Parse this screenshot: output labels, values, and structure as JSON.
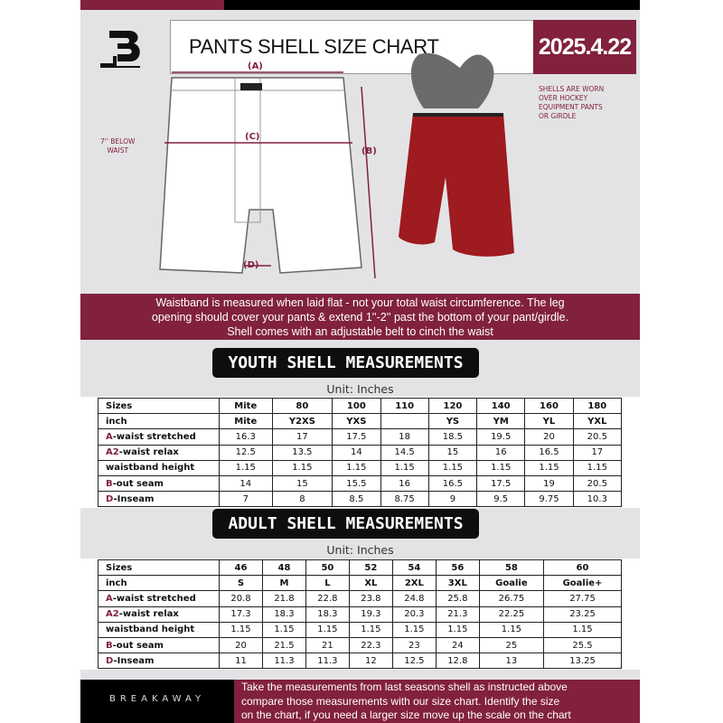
{
  "header": {
    "title": "PANTS SHELL SIZE CHART",
    "date": "2025.4.22",
    "logo": "B"
  },
  "diagram": {
    "label_a": "(A)",
    "label_b": "(B)",
    "label_c": "(C)",
    "label_d": "(D)",
    "note_left": [
      "7'' BELOW",
      "WAIST"
    ],
    "note_right": [
      "SHELLS ARE WORN",
      "OVER HOCKEY",
      "EQUIPMENT PANTS",
      "OR GIRDLE"
    ]
  },
  "banner": [
    "Waistband is measured when laid flat - not your total waist circumference. The leg",
    "opening should cover your pants & extend 1''-2'' past the bottom of your pant/girdle.",
    "Shell comes with an adjustable belt to cinch the waist"
  ],
  "youth": {
    "title": "YOUTH SHELL MEASUREMENTS",
    "unit": "Unit: Inches",
    "rows": [
      {
        "p": "",
        "l": "Sizes",
        "v": [
          "Mite",
          "80",
          "100",
          "110",
          "120",
          "140",
          "160",
          "180"
        ]
      },
      {
        "p": "",
        "l": "inch",
        "v": [
          "Mite",
          "Y2XS",
          "YXS",
          "",
          "YS",
          "YM",
          "YL",
          "YXL"
        ]
      },
      {
        "p": "A",
        "l": "-waist stretched",
        "v": [
          "16.3",
          "17",
          "17.5",
          "18",
          "18.5",
          "19.5",
          "20",
          "20.5"
        ]
      },
      {
        "p": "A2",
        "l": "-waist relax",
        "v": [
          "12.5",
          "13.5",
          "14",
          "14.5",
          "15",
          "16",
          "16.5",
          "17"
        ]
      },
      {
        "p": "",
        "l": "waistband height",
        "v": [
          "1.15",
          "1.15",
          "1.15",
          "1.15",
          "1.15",
          "1.15",
          "1.15",
          "1.15"
        ]
      },
      {
        "p": "B",
        "l": "-out seam",
        "v": [
          "14",
          "15",
          "15.5",
          "16",
          "16.5",
          "17.5",
          "19",
          "20.5"
        ]
      },
      {
        "p": "D",
        "l": "-Inseam",
        "v": [
          "7",
          "8",
          "8.5",
          "8.75",
          "9",
          "9.5",
          "9.75",
          "10.3"
        ]
      }
    ]
  },
  "adult": {
    "title": "ADULT SHELL MEASUREMENTS",
    "unit": "Unit: Inches",
    "rows": [
      {
        "p": "",
        "l": "Sizes",
        "v": [
          "46",
          "48",
          "50",
          "52",
          "54",
          "56",
          "58",
          "60"
        ]
      },
      {
        "p": "",
        "l": "inch",
        "v": [
          "S",
          "M",
          "L",
          "XL",
          "2XL",
          "3XL",
          "Goalie",
          "Goalie+"
        ]
      },
      {
        "p": "A",
        "l": "-waist stretched",
        "v": [
          "20.8",
          "21.8",
          "22.8",
          "23.8",
          "24.8",
          "25.8",
          "26.75",
          "27.75"
        ]
      },
      {
        "p": "A2",
        "l": "-waist relax",
        "v": [
          "17.3",
          "18.3",
          "18.3",
          "19.3",
          "20.3",
          "21.3",
          "22.25",
          "23.25"
        ]
      },
      {
        "p": "",
        "l": "waistband height",
        "v": [
          "1.15",
          "1.15",
          "1.15",
          "1.15",
          "1.15",
          "1.15",
          "1.15",
          "1.15"
        ]
      },
      {
        "p": "B",
        "l": "-out seam",
        "v": [
          "20",
          "21.5",
          "21",
          "22.3",
          "23",
          "24",
          "25",
          "25.5"
        ]
      },
      {
        "p": "D",
        "l": "-Inseam",
        "v": [
          "11",
          "11.3",
          "11.3",
          "12",
          "12.5",
          "12.8",
          "13",
          "13.25"
        ]
      }
    ]
  },
  "footer": {
    "brand": "BREAKAWAY",
    "text": [
      "Take the measurements from last seasons shell as instructed above",
      "compare those measurements  with our size chart. Identify the size",
      "on the chart, if you need a larger size move up the scale on the chart"
    ]
  },
  "colors": {
    "brand": "#81213d",
    "dark": "#0e0e0e",
    "background": "#e3e3e6"
  }
}
